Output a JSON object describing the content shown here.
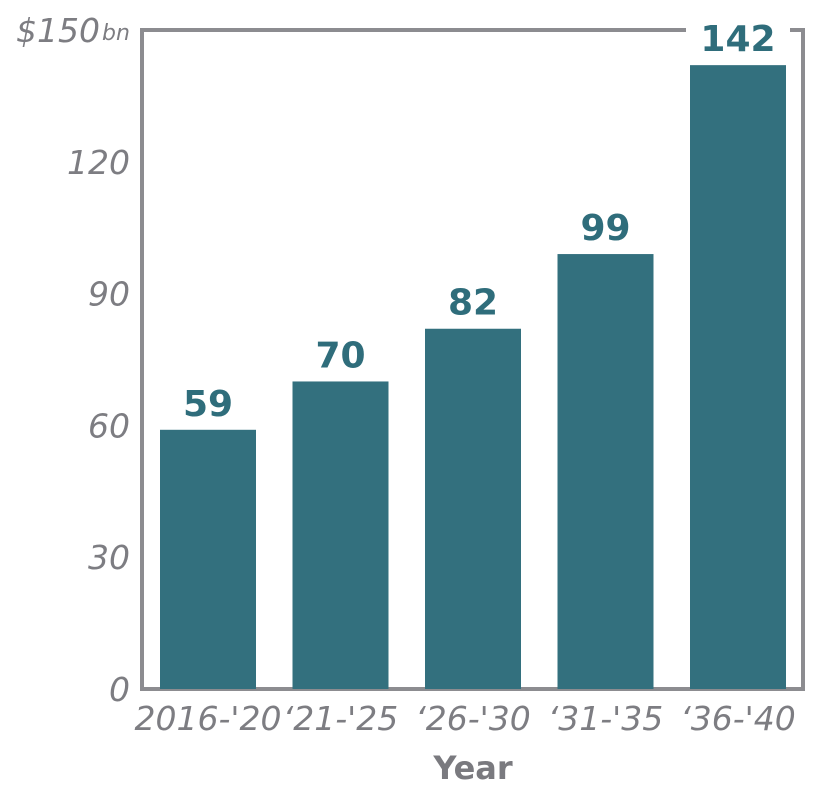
{
  "chart_data": {
    "type": "bar",
    "categories": [
      "2016-'20",
      "‘21-'25",
      "‘26-'30",
      "‘31-'35",
      "‘36-'40"
    ],
    "values": [
      59,
      70,
      82,
      99,
      142
    ],
    "data_labels": [
      "59",
      "70",
      "82",
      "99",
      "142"
    ],
    "xlabel": "Year",
    "ylabel": "",
    "ylim": [
      0,
      150
    ],
    "yticks": [
      0,
      30,
      60,
      90,
      120,
      150
    ],
    "ytick_labels": [
      "0",
      "30",
      "60",
      "90",
      "120",
      "$150"
    ],
    "ytick_top_unit": "bn",
    "grid": false,
    "colors": {
      "bar": "#33707e",
      "data_label": "#2f6d7b",
      "frame": "#8c8c90",
      "tick": "#7d7d82"
    }
  }
}
